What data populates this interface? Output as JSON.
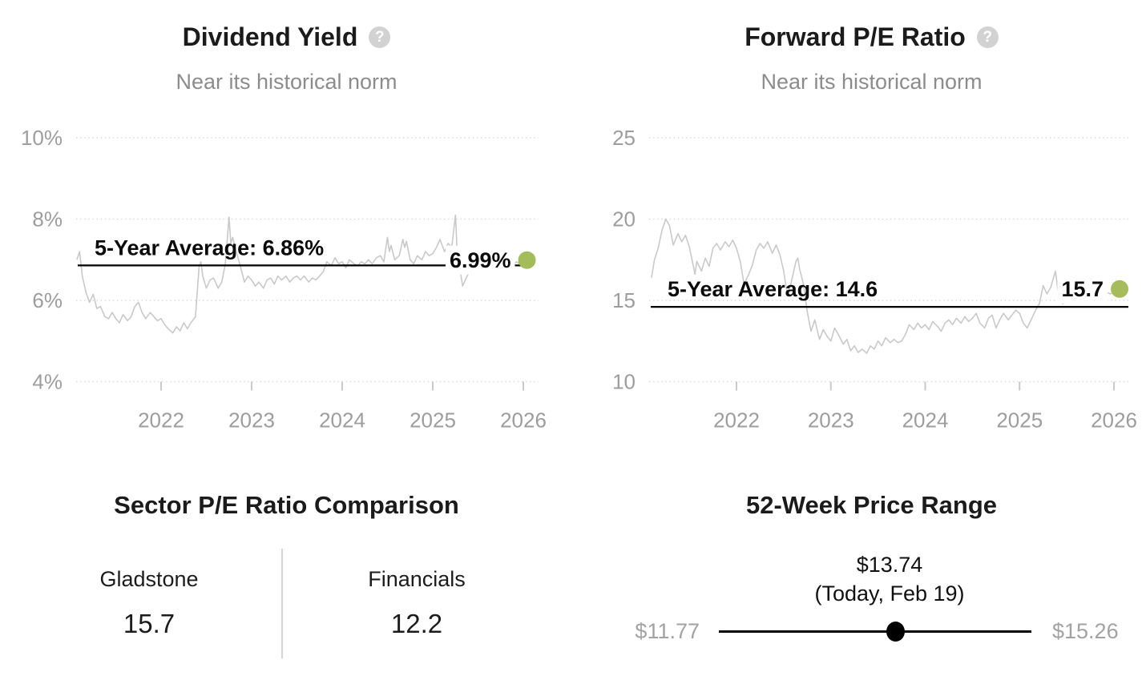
{
  "colors": {
    "background": "#ffffff",
    "series_line": "#c9c9c9",
    "average_line": "#000000",
    "accent_dot_green": "#a4bd5a",
    "axis_text": "#9d9d9d",
    "subtitle_text": "#8c8c8c",
    "muted_price_text": "#a2a2a2",
    "help_icon_bg": "#d2d2d2"
  },
  "chart_data": [
    {
      "type": "line",
      "title": "Dividend Yield",
      "subtitle": "Near its historical norm",
      "help_icon": "?",
      "series_name": "Dividend Yield (%)",
      "y_ticks": [
        "10%",
        "8%",
        "6%",
        "4%"
      ],
      "y_tick_values": [
        10,
        8,
        6,
        4
      ],
      "x_ticks": [
        2022,
        2023,
        2024,
        2025,
        2026
      ],
      "grid": "dotted horizontal",
      "legend": "none",
      "average": 6.86,
      "average_label": "5-Year Average: 6.86%",
      "current": 6.99,
      "current_label": "6.99%",
      "x": [
        2021.07,
        2021.1,
        2021.13,
        2021.17,
        2021.21,
        2021.25,
        2021.29,
        2021.33,
        2021.38,
        2021.42,
        2021.46,
        2021.5,
        2021.54,
        2021.58,
        2021.63,
        2021.67,
        2021.71,
        2021.75,
        2021.79,
        2021.83,
        2021.88,
        2021.92,
        2021.96,
        2022.0,
        2022.04,
        2022.08,
        2022.13,
        2022.17,
        2022.21,
        2022.25,
        2022.29,
        2022.33,
        2022.38,
        2022.42,
        2022.44,
        2022.46,
        2022.5,
        2022.54,
        2022.58,
        2022.63,
        2022.67,
        2022.71,
        2022.75,
        2022.77,
        2022.79,
        2022.83,
        2022.88,
        2022.92,
        2022.96,
        2023.0,
        2023.04,
        2023.08,
        2023.13,
        2023.17,
        2023.21,
        2023.25,
        2023.29,
        2023.33,
        2023.38,
        2023.42,
        2023.46,
        2023.5,
        2023.54,
        2023.58,
        2023.63,
        2023.67,
        2023.71,
        2023.75,
        2023.79,
        2023.83,
        2023.88,
        2023.92,
        2023.96,
        2024.0,
        2024.04,
        2024.08,
        2024.13,
        2024.17,
        2024.21,
        2024.25,
        2024.29,
        2024.33,
        2024.38,
        2024.42,
        2024.46,
        2024.5,
        2024.52,
        2024.54,
        2024.58,
        2024.63,
        2024.67,
        2024.69,
        2024.71,
        2024.75,
        2024.79,
        2024.83,
        2024.88,
        2024.92,
        2024.96,
        2025.0,
        2025.04,
        2025.08,
        2025.13,
        2025.17,
        2025.21,
        2025.25,
        2025.27,
        2025.29,
        2025.33,
        2025.38,
        2025.42,
        2025.46,
        2025.5,
        2025.54,
        2025.58,
        2025.63,
        2025.67,
        2025.71,
        2025.75,
        2025.79,
        2025.83,
        2025.88,
        2025.92,
        2025.96,
        2026.0,
        2026.04
      ],
      "values": [
        7.0,
        7.2,
        6.6,
        6.2,
        5.95,
        6.15,
        5.8,
        5.85,
        5.6,
        5.55,
        5.7,
        5.55,
        5.45,
        5.65,
        5.5,
        5.6,
        5.85,
        5.95,
        5.7,
        5.55,
        5.7,
        5.6,
        5.5,
        5.55,
        5.4,
        5.3,
        5.2,
        5.35,
        5.25,
        5.45,
        5.3,
        5.45,
        5.6,
        6.85,
        6.95,
        6.6,
        6.3,
        6.5,
        6.55,
        6.3,
        6.45,
        6.9,
        8.05,
        7.4,
        7.55,
        7.2,
        6.8,
        6.45,
        6.6,
        6.5,
        6.35,
        6.45,
        6.3,
        6.5,
        6.55,
        6.4,
        6.6,
        6.5,
        6.6,
        6.45,
        6.55,
        6.6,
        6.5,
        6.6,
        6.45,
        6.55,
        6.5,
        6.6,
        6.7,
        6.95,
        6.85,
        7.05,
        6.9,
        6.95,
        6.8,
        7.0,
        6.9,
        6.85,
        6.95,
        6.9,
        7.0,
        6.9,
        7.05,
        7.1,
        6.95,
        7.55,
        7.2,
        7.35,
        7.0,
        7.1,
        7.5,
        7.3,
        7.45,
        7.0,
        6.9,
        7.1,
        7.0,
        7.2,
        7.1,
        7.15,
        7.3,
        7.5,
        7.2,
        7.4,
        7.3,
        8.1,
        7.2,
        6.9,
        6.35,
        6.6,
        6.75,
        6.65,
        6.85,
        6.8,
        6.9,
        6.85,
        6.9,
        6.8,
        6.9,
        6.85,
        6.9,
        6.85,
        6.95,
        6.9,
        6.95,
        6.99
      ]
    },
    {
      "type": "line",
      "title": "Forward P/E Ratio",
      "subtitle": "Near its historical norm",
      "help_icon": "?",
      "series_name": "Forward P/E Ratio",
      "y_ticks": [
        "25",
        "20",
        "15",
        "10"
      ],
      "y_tick_values": [
        25,
        20,
        15,
        10
      ],
      "x_ticks": [
        2022,
        2023,
        2024,
        2025,
        2026
      ],
      "grid": "dotted horizontal",
      "legend": "none",
      "average": 14.6,
      "average_label": "5-Year Average: 14.6",
      "current": 15.7,
      "current_label": "15.7",
      "x": [
        2021.1,
        2021.13,
        2021.17,
        2021.21,
        2021.25,
        2021.29,
        2021.33,
        2021.38,
        2021.42,
        2021.46,
        2021.5,
        2021.54,
        2021.56,
        2021.58,
        2021.63,
        2021.67,
        2021.71,
        2021.75,
        2021.79,
        2021.83,
        2021.88,
        2021.92,
        2021.96,
        2022.0,
        2022.04,
        2022.08,
        2022.13,
        2022.17,
        2022.21,
        2022.25,
        2022.29,
        2022.33,
        2022.38,
        2022.42,
        2022.46,
        2022.5,
        2022.54,
        2022.58,
        2022.63,
        2022.65,
        2022.67,
        2022.71,
        2022.75,
        2022.79,
        2022.83,
        2022.88,
        2022.92,
        2022.96,
        2023.0,
        2023.04,
        2023.08,
        2023.13,
        2023.17,
        2023.21,
        2023.25,
        2023.29,
        2023.33,
        2023.38,
        2023.42,
        2023.46,
        2023.5,
        2023.54,
        2023.58,
        2023.63,
        2023.67,
        2023.71,
        2023.75,
        2023.79,
        2023.83,
        2023.88,
        2023.92,
        2023.96,
        2024.0,
        2024.04,
        2024.08,
        2024.13,
        2024.17,
        2024.21,
        2024.25,
        2024.29,
        2024.33,
        2024.38,
        2024.42,
        2024.46,
        2024.5,
        2024.54,
        2024.58,
        2024.63,
        2024.67,
        2024.71,
        2024.75,
        2024.79,
        2024.83,
        2024.88,
        2024.92,
        2024.96,
        2025.0,
        2025.04,
        2025.08,
        2025.13,
        2025.17,
        2025.21,
        2025.25,
        2025.29,
        2025.33,
        2025.38,
        2025.4,
        2025.42,
        2025.46,
        2025.5,
        2025.54,
        2025.58,
        2025.63,
        2025.67,
        2025.71,
        2025.75,
        2025.79,
        2025.83,
        2025.88,
        2025.92,
        2025.96,
        2026.0,
        2026.06
      ],
      "values": [
        16.4,
        17.5,
        18.2,
        19.3,
        20.0,
        19.6,
        18.4,
        19.1,
        18.6,
        19.0,
        18.3,
        17.2,
        16.6,
        17.4,
        16.8,
        17.6,
        17.1,
        18.2,
        18.5,
        18.1,
        18.6,
        18.3,
        18.7,
        18.2,
        17.4,
        16.0,
        16.6,
        17.2,
        18.1,
        18.5,
        18.2,
        18.6,
        17.9,
        18.4,
        17.8,
        16.8,
        15.3,
        16.1,
        17.4,
        17.6,
        16.9,
        16.0,
        14.3,
        13.1,
        13.8,
        12.6,
        13.2,
        12.8,
        12.5,
        13.3,
        12.9,
        12.3,
        12.6,
        11.9,
        12.2,
        11.8,
        12.0,
        11.75,
        12.2,
        12.0,
        12.5,
        12.2,
        12.7,
        12.4,
        12.6,
        12.4,
        12.5,
        12.9,
        13.5,
        13.2,
        13.6,
        13.3,
        13.5,
        13.2,
        13.7,
        13.4,
        13.1,
        13.6,
        13.8,
        13.5,
        13.9,
        13.6,
        14.0,
        13.7,
        13.9,
        14.2,
        13.6,
        13.3,
        13.9,
        14.1,
        13.3,
        13.8,
        14.2,
        13.8,
        14.1,
        14.4,
        14.2,
        13.6,
        13.3,
        13.9,
        14.4,
        14.8,
        15.9,
        15.4,
        15.8,
        16.8,
        15.9,
        15.1,
        14.8,
        15.3,
        15.1,
        15.4,
        15.2,
        15.5,
        15.3,
        15.2,
        15.4,
        15.1,
        15.3,
        15.5,
        15.4,
        15.5,
        15.7
      ]
    }
  ],
  "sector_comparison": {
    "title": "Sector P/E Ratio Comparison",
    "columns": [
      {
        "label": "Gladstone",
        "value": "15.7"
      },
      {
        "label": "Financials",
        "value": "12.2"
      }
    ]
  },
  "price_range": {
    "title": "52-Week Price Range",
    "current_price": "$13.74",
    "current_date": "(Today, Feb 19)",
    "low": "$11.77",
    "high": "$15.26",
    "low_value": 11.77,
    "high_value": 15.26,
    "current_value": 13.74
  }
}
